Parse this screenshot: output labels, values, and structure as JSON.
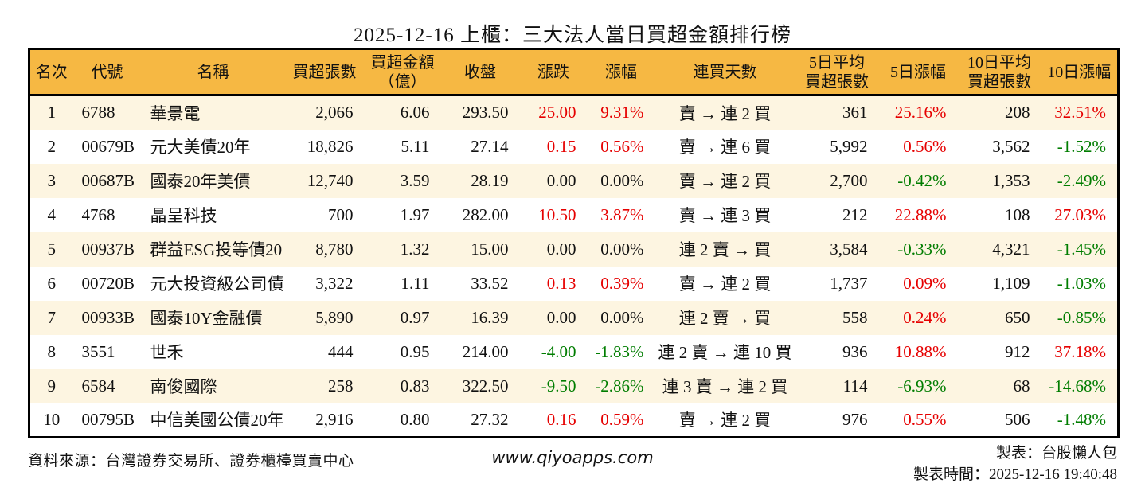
{
  "title": "2025-12-16 上櫃：三大法人當日買超金額排行榜",
  "colors": {
    "header_bg": "#f6b843",
    "row_alt_bg": "#fdf5e1",
    "up_red": "#e60000",
    "down_green": "#007d00"
  },
  "table": {
    "columns": [
      {
        "key": "rank",
        "label": "名次",
        "align": "ac",
        "width": 55
      },
      {
        "key": "code",
        "label": "代號",
        "align": "al",
        "width": 86
      },
      {
        "key": "name",
        "label": "名稱",
        "align": "al",
        "width": 180
      },
      {
        "key": "volume",
        "label": "買超張數",
        "align": "ar",
        "width": 100
      },
      {
        "key": "amount",
        "label": "買超金額\n（億）",
        "align": "ar",
        "width": 96
      },
      {
        "key": "close",
        "label": "收盤",
        "align": "ar",
        "width": 99
      },
      {
        "key": "change",
        "label": "漲跌",
        "align": "ar",
        "width": 85
      },
      {
        "key": "change_pct",
        "label": "漲幅",
        "align": "ar",
        "width": 85
      },
      {
        "key": "streak",
        "label": "連買天數",
        "align": "ac",
        "width": 176
      },
      {
        "key": "avg5",
        "label": "5日平均\n買超張數",
        "align": "ar",
        "width": 105
      },
      {
        "key": "pct5",
        "label": "5日漲幅",
        "align": "ar",
        "width": 99
      },
      {
        "key": "avg10",
        "label": "10日平均\n買超張數",
        "align": "ar",
        "width": 105
      },
      {
        "key": "pct10",
        "label": "10日漲幅",
        "align": "ar",
        "width": 97
      }
    ],
    "rows": [
      {
        "rank": "1",
        "code": "6788",
        "name": "華景電",
        "volume": "2,066",
        "amount": "6.06",
        "close": "293.50",
        "change": {
          "v": "25.00",
          "c": "red"
        },
        "change_pct": {
          "v": "9.31%",
          "c": "red"
        },
        "streak": "賣 → 連 2 買",
        "avg5": "361",
        "pct5": {
          "v": "25.16%",
          "c": "red"
        },
        "avg10": "208",
        "pct10": {
          "v": "32.51%",
          "c": "red"
        }
      },
      {
        "rank": "2",
        "code": "00679B",
        "name": "元大美債20年",
        "volume": "18,826",
        "amount": "5.11",
        "close": "27.14",
        "change": {
          "v": "0.15",
          "c": "red"
        },
        "change_pct": {
          "v": "0.56%",
          "c": "red"
        },
        "streak": "賣 → 連 6 買",
        "avg5": "5,992",
        "pct5": {
          "v": "0.56%",
          "c": "red"
        },
        "avg10": "3,562",
        "pct10": {
          "v": "-1.52%",
          "c": "green"
        }
      },
      {
        "rank": "3",
        "code": "00687B",
        "name": "國泰20年美債",
        "volume": "12,740",
        "amount": "3.59",
        "close": "28.19",
        "change": {
          "v": "0.00",
          "c": "black"
        },
        "change_pct": {
          "v": "0.00%",
          "c": "black"
        },
        "streak": "賣 → 連 2 買",
        "avg5": "2,700",
        "pct5": {
          "v": "-0.42%",
          "c": "green"
        },
        "avg10": "1,353",
        "pct10": {
          "v": "-2.49%",
          "c": "green"
        }
      },
      {
        "rank": "4",
        "code": "4768",
        "name": "晶呈科技",
        "volume": "700",
        "amount": "1.97",
        "close": "282.00",
        "change": {
          "v": "10.50",
          "c": "red"
        },
        "change_pct": {
          "v": "3.87%",
          "c": "red"
        },
        "streak": "賣 → 連 3 買",
        "avg5": "212",
        "pct5": {
          "v": "22.88%",
          "c": "red"
        },
        "avg10": "108",
        "pct10": {
          "v": "27.03%",
          "c": "red"
        }
      },
      {
        "rank": "5",
        "code": "00937B",
        "name": "群益ESG投等債20",
        "volume": "8,780",
        "amount": "1.32",
        "close": "15.00",
        "change": {
          "v": "0.00",
          "c": "black"
        },
        "change_pct": {
          "v": "0.00%",
          "c": "black"
        },
        "streak": "連 2 賣 → 買",
        "avg5": "3,584",
        "pct5": {
          "v": "-0.33%",
          "c": "green"
        },
        "avg10": "4,321",
        "pct10": {
          "v": "-1.45%",
          "c": "green"
        }
      },
      {
        "rank": "6",
        "code": "00720B",
        "name": "元大投資級公司債",
        "volume": "3,322",
        "amount": "1.11",
        "close": "33.52",
        "change": {
          "v": "0.13",
          "c": "red"
        },
        "change_pct": {
          "v": "0.39%",
          "c": "red"
        },
        "streak": "賣 → 連 2 買",
        "avg5": "1,737",
        "pct5": {
          "v": "0.09%",
          "c": "red"
        },
        "avg10": "1,109",
        "pct10": {
          "v": "-1.03%",
          "c": "green"
        }
      },
      {
        "rank": "7",
        "code": "00933B",
        "name": "國泰10Y金融債",
        "volume": "5,890",
        "amount": "0.97",
        "close": "16.39",
        "change": {
          "v": "0.00",
          "c": "black"
        },
        "change_pct": {
          "v": "0.00%",
          "c": "black"
        },
        "streak": "連 2 賣 → 買",
        "avg5": "558",
        "pct5": {
          "v": "0.24%",
          "c": "red"
        },
        "avg10": "650",
        "pct10": {
          "v": "-0.85%",
          "c": "green"
        }
      },
      {
        "rank": "8",
        "code": "3551",
        "name": "世禾",
        "volume": "444",
        "amount": "0.95",
        "close": "214.00",
        "change": {
          "v": "-4.00",
          "c": "green"
        },
        "change_pct": {
          "v": "-1.83%",
          "c": "green"
        },
        "streak": "連 2 賣 → 連 10 買",
        "avg5": "936",
        "pct5": {
          "v": "10.88%",
          "c": "red"
        },
        "avg10": "912",
        "pct10": {
          "v": "37.18%",
          "c": "red"
        }
      },
      {
        "rank": "9",
        "code": "6584",
        "name": "南俊國際",
        "volume": "258",
        "amount": "0.83",
        "close": "322.50",
        "change": {
          "v": "-9.50",
          "c": "green"
        },
        "change_pct": {
          "v": "-2.86%",
          "c": "green"
        },
        "streak": "連 3 賣 → 連 2 買",
        "avg5": "114",
        "pct5": {
          "v": "-6.93%",
          "c": "green"
        },
        "avg10": "68",
        "pct10": {
          "v": "-14.68%",
          "c": "green"
        }
      },
      {
        "rank": "10",
        "code": "00795B",
        "name": "中信美國公債20年",
        "volume": "2,916",
        "amount": "0.80",
        "close": "27.32",
        "change": {
          "v": "0.16",
          "c": "red"
        },
        "change_pct": {
          "v": "0.59%",
          "c": "red"
        },
        "streak": "賣 → 連 2 買",
        "avg5": "976",
        "pct5": {
          "v": "0.55%",
          "c": "red"
        },
        "avg10": "506",
        "pct10": {
          "v": "-1.48%",
          "c": "green"
        }
      }
    ]
  },
  "footer": {
    "source": "資料來源：台灣證券交易所、證券櫃檯買賣中心",
    "website": "www.qiyoapps.com",
    "maker": "製表：台股懶人包",
    "made_time": "製表時間：2025-12-16 19:40:48"
  }
}
